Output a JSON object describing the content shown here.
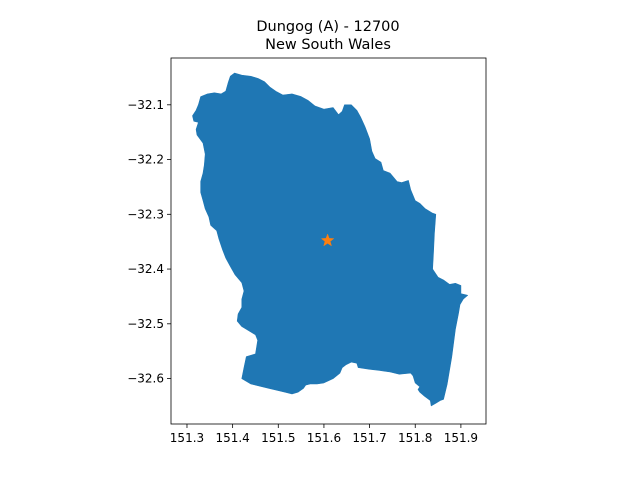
{
  "chart_data": {
    "type": "map",
    "title": {
      "line1": "Dungog (A) - 12700",
      "line2": "New South Wales"
    },
    "xlabel": "",
    "ylabel": "",
    "xlim": [
      151.265,
      151.955
    ],
    "ylim": [
      -32.683,
      -32.0145
    ],
    "x_ticks": [
      151.3,
      151.4,
      151.5,
      151.6,
      151.7,
      151.8,
      151.9
    ],
    "x_tick_labels": [
      "151.3",
      "151.4",
      "151.5",
      "151.6",
      "151.7",
      "151.8",
      "151.9"
    ],
    "y_ticks": [
      -32.1,
      -32.2,
      -32.3,
      -32.4,
      -32.5,
      -32.6
    ],
    "y_tick_labels": [
      "−32.1",
      "−32.2",
      "−32.3",
      "−32.4",
      "−32.5",
      "−32.6"
    ],
    "grid": false,
    "region_color": "#1f77b4",
    "marker_color": "#ff7f0e",
    "region_outline": [
      [
        151.404,
        -32.042
      ],
      [
        151.42,
        -32.046
      ],
      [
        151.44,
        -32.048
      ],
      [
        151.456,
        -32.052
      ],
      [
        151.47,
        -32.058
      ],
      [
        151.482,
        -32.068
      ],
      [
        151.496,
        -32.076
      ],
      [
        151.51,
        -32.082
      ],
      [
        151.53,
        -32.08
      ],
      [
        151.55,
        -32.085
      ],
      [
        151.565,
        -32.092
      ],
      [
        151.58,
        -32.102
      ],
      [
        151.6,
        -32.108
      ],
      [
        151.62,
        -32.105
      ],
      [
        151.632,
        -32.118
      ],
      [
        151.64,
        -32.112
      ],
      [
        151.645,
        -32.1
      ],
      [
        151.66,
        -32.1
      ],
      [
        151.672,
        -32.11
      ],
      [
        151.68,
        -32.122
      ],
      [
        151.69,
        -32.14
      ],
      [
        151.7,
        -32.162
      ],
      [
        151.705,
        -32.185
      ],
      [
        151.712,
        -32.198
      ],
      [
        151.725,
        -32.205
      ],
      [
        151.73,
        -32.22
      ],
      [
        151.745,
        -32.225
      ],
      [
        151.76,
        -32.24
      ],
      [
        151.77,
        -32.242
      ],
      [
        151.785,
        -32.238
      ],
      [
        151.79,
        -32.255
      ],
      [
        151.8,
        -32.275
      ],
      [
        151.81,
        -32.28
      ],
      [
        151.822,
        -32.29
      ],
      [
        151.838,
        -32.298
      ],
      [
        151.845,
        -32.3
      ],
      [
        151.842,
        -32.335
      ],
      [
        151.84,
        -32.37
      ],
      [
        151.838,
        -32.4
      ],
      [
        151.85,
        -32.415
      ],
      [
        151.862,
        -32.42
      ],
      [
        151.875,
        -32.428
      ],
      [
        151.888,
        -32.426
      ],
      [
        151.9,
        -32.43
      ],
      [
        151.9,
        -32.445
      ],
      [
        151.915,
        -32.448
      ],
      [
        151.905,
        -32.455
      ],
      [
        151.898,
        -32.465
      ],
      [
        151.895,
        -32.48
      ],
      [
        151.888,
        -32.51
      ],
      [
        151.88,
        -32.56
      ],
      [
        151.87,
        -32.61
      ],
      [
        151.862,
        -32.638
      ],
      [
        151.855,
        -32.64
      ],
      [
        151.845,
        -32.645
      ],
      [
        151.835,
        -32.65
      ],
      [
        151.833,
        -32.64
      ],
      [
        151.82,
        -32.632
      ],
      [
        151.81,
        -32.625
      ],
      [
        151.806,
        -32.62
      ],
      [
        151.81,
        -32.615
      ],
      [
        151.8,
        -32.608
      ],
      [
        151.795,
        -32.595
      ],
      [
        151.79,
        -32.59
      ],
      [
        151.765,
        -32.592
      ],
      [
        151.745,
        -32.588
      ],
      [
        151.72,
        -32.585
      ],
      [
        151.7,
        -32.583
      ],
      [
        151.675,
        -32.58
      ],
      [
        151.672,
        -32.572
      ],
      [
        151.66,
        -32.57
      ],
      [
        151.648,
        -32.575
      ],
      [
        151.64,
        -32.58
      ],
      [
        151.635,
        -32.59
      ],
      [
        151.62,
        -32.6
      ],
      [
        151.6,
        -32.608
      ],
      [
        151.585,
        -32.61
      ],
      [
        151.57,
        -32.61
      ],
      [
        151.56,
        -32.612
      ],
      [
        151.555,
        -32.618
      ],
      [
        151.543,
        -32.625
      ],
      [
        151.53,
        -32.628
      ],
      [
        151.515,
        -32.625
      ],
      [
        151.5,
        -32.622
      ],
      [
        151.48,
        -32.618
      ],
      [
        151.46,
        -32.614
      ],
      [
        151.45,
        -32.612
      ],
      [
        151.44,
        -32.61
      ],
      [
        151.42,
        -32.6
      ],
      [
        151.425,
        -32.58
      ],
      [
        151.43,
        -32.56
      ],
      [
        151.45,
        -32.555
      ],
      [
        151.455,
        -32.53
      ],
      [
        151.45,
        -32.52
      ],
      [
        151.44,
        -32.515
      ],
      [
        151.42,
        -32.505
      ],
      [
        151.41,
        -32.495
      ],
      [
        151.412,
        -32.482
      ],
      [
        151.42,
        -32.47
      ],
      [
        151.42,
        -32.455
      ],
      [
        151.425,
        -32.44
      ],
      [
        151.42,
        -32.425
      ],
      [
        151.405,
        -32.41
      ],
      [
        151.395,
        -32.395
      ],
      [
        151.385,
        -32.38
      ],
      [
        151.378,
        -32.365
      ],
      [
        151.37,
        -32.345
      ],
      [
        151.365,
        -32.33
      ],
      [
        151.352,
        -32.32
      ],
      [
        151.348,
        -32.305
      ],
      [
        151.34,
        -32.29
      ],
      [
        151.335,
        -32.275
      ],
      [
        151.33,
        -32.26
      ],
      [
        151.33,
        -32.24
      ],
      [
        151.335,
        -32.225
      ],
      [
        151.338,
        -32.21
      ],
      [
        151.34,
        -32.19
      ],
      [
        151.335,
        -32.17
      ],
      [
        151.322,
        -32.155
      ],
      [
        151.32,
        -32.145
      ],
      [
        151.325,
        -32.132
      ],
      [
        151.315,
        -32.13
      ],
      [
        151.312,
        -32.12
      ],
      [
        151.32,
        -32.11
      ],
      [
        151.325,
        -32.1
      ],
      [
        151.33,
        -32.085
      ],
      [
        151.345,
        -32.08
      ],
      [
        151.36,
        -32.078
      ],
      [
        151.375,
        -32.08
      ],
      [
        151.385,
        -32.075
      ],
      [
        151.39,
        -32.06
      ],
      [
        151.395,
        -32.048
      ],
      [
        151.404,
        -32.042
      ]
    ],
    "marker": {
      "label": "star",
      "x": 151.608,
      "y": -32.348
    }
  }
}
